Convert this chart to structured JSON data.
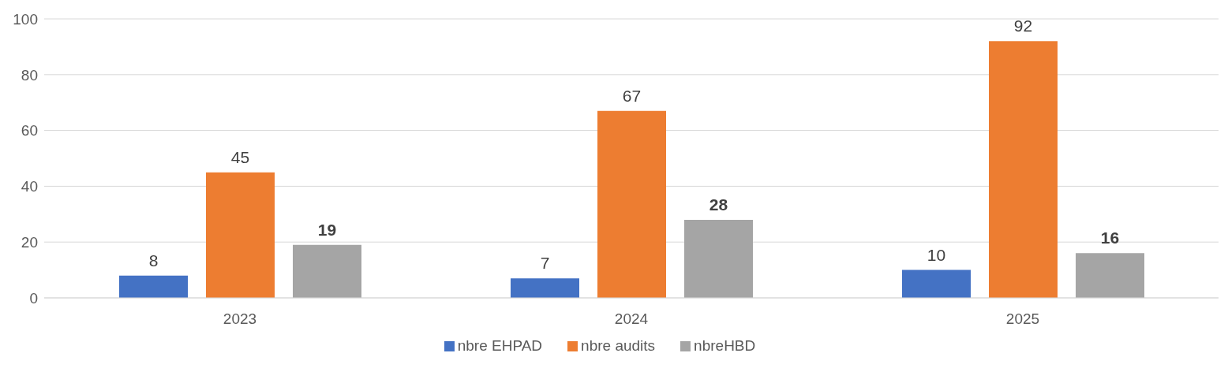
{
  "chart_data": {
    "type": "bar",
    "categories": [
      "2023",
      "2024",
      "2025"
    ],
    "series": [
      {
        "name": "nbre EHPAD",
        "color": "#4472c4",
        "values": [
          8,
          7,
          10
        ]
      },
      {
        "name": "nbre audits",
        "color": "#ed7d31",
        "values": [
          45,
          67,
          92
        ]
      },
      {
        "name": "nbreHBD",
        "color": "#a5a5a5",
        "values": [
          19,
          28,
          16
        ]
      }
    ],
    "ylim": [
      0,
      100
    ],
    "yticks": [
      0,
      20,
      40,
      60,
      80,
      100
    ],
    "grid": "y",
    "legend": "bottom",
    "data_labels": true
  }
}
